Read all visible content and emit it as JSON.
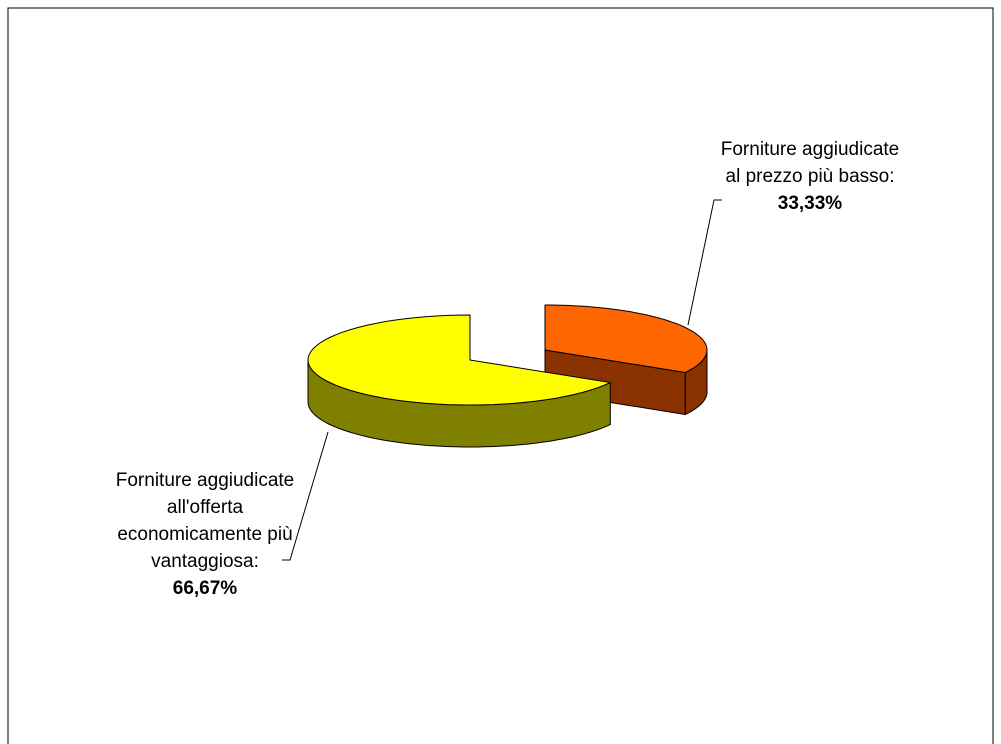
{
  "chart_data": {
    "type": "pie3d",
    "categories": [
      "Forniture aggiudicate al prezzo più basso:",
      "Forniture aggiudicate all'offerta economicamente più vantaggiosa:"
    ],
    "values": [
      33.33,
      66.67
    ],
    "value_labels": [
      "33,33%",
      "66,67%"
    ],
    "colors": [
      "#ff6600",
      "#ffff00"
    ],
    "side_colors": [
      "#8b3300",
      "#808000"
    ]
  }
}
